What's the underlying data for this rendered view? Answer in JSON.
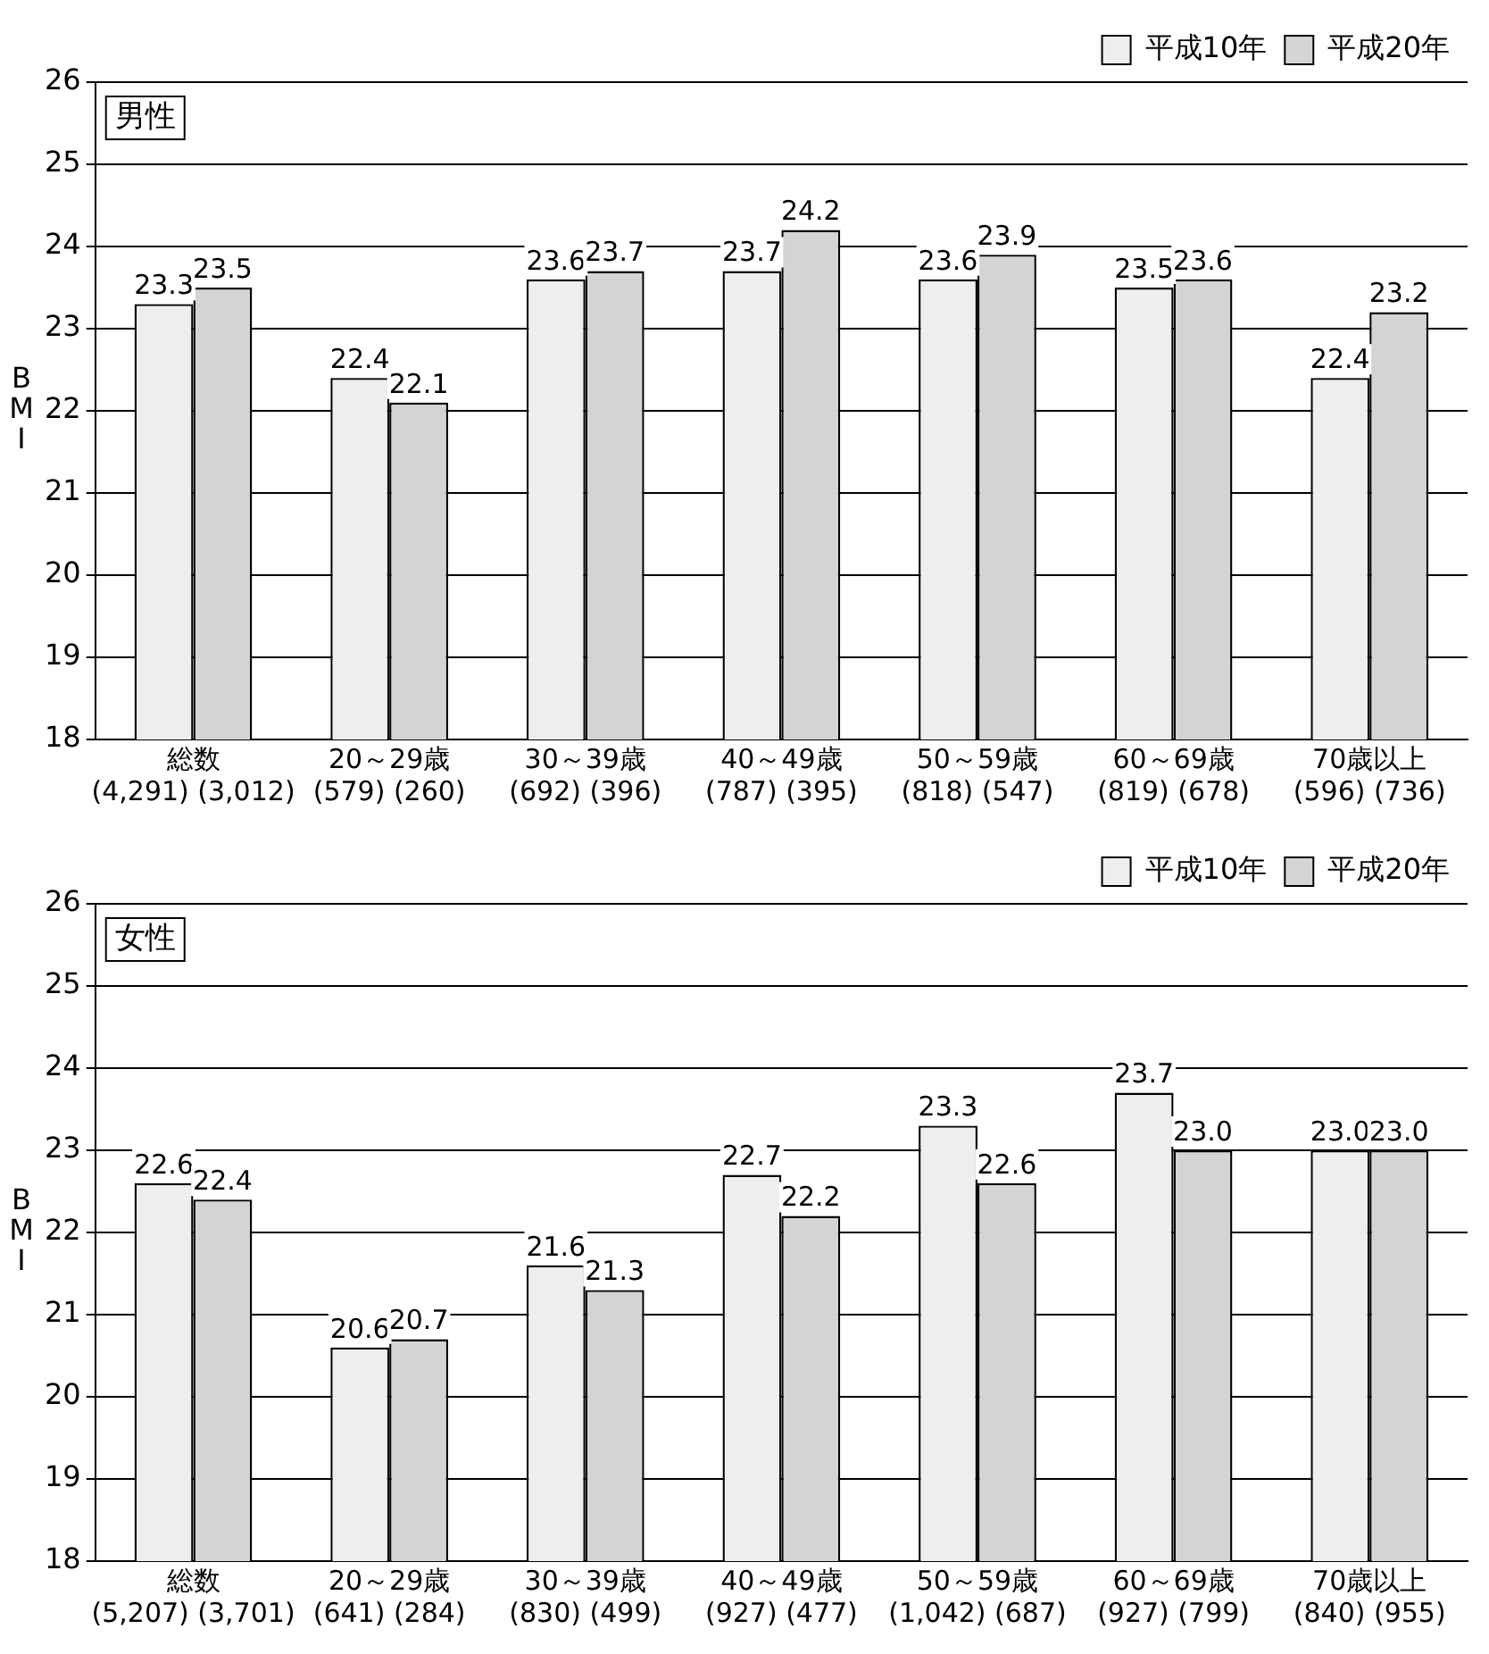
{
  "chart_data": [
    {
      "type": "bar",
      "title": "男性",
      "ylabel": "BMI",
      "categories": [
        "総数\n(4,291) (3,012)",
        "20～29歳\n(579) (260)",
        "30～39歳\n(692) (396)",
        "40～49歳\n(787) (395)",
        "50～59歳\n(818) (547)",
        "60～69歳\n(819) (678)",
        "70歳以上\n(596) (736)"
      ],
      "series": [
        {
          "name": "平成10年",
          "color": "#eeeeee",
          "values": [
            23.3,
            22.4,
            23.6,
            23.7,
            23.6,
            23.5,
            22.4
          ],
          "value_labels": [
            "23.3",
            "22.4",
            "23.6",
            "23.7",
            "23.6",
            "23.5",
            "22.4"
          ]
        },
        {
          "name": "平成20年",
          "color": "#d4d4d4",
          "values": [
            23.5,
            22.1,
            23.7,
            24.2,
            23.9,
            23.6,
            23.2
          ],
          "value_labels": [
            "23.5",
            "22.1",
            "23.7",
            "24.2",
            "23.9",
            "23.6",
            "23.2"
          ]
        }
      ],
      "ylim": [
        18,
        26
      ],
      "yticks": [
        18,
        19,
        20,
        21,
        22,
        23,
        24,
        25,
        26
      ],
      "grid": "y",
      "legend": "top right"
    },
    {
      "type": "bar",
      "title": "女性",
      "ylabel": "BMI",
      "categories": [
        "総数\n(5,207) (3,701)",
        "20～29歳\n(641) (284)",
        "30～39歳\n(830) (499)",
        "40～49歳\n(927) (477)",
        "50～59歳\n(1,042) (687)",
        "60～69歳\n(927) (799)",
        "70歳以上\n(840) (955)"
      ],
      "series": [
        {
          "name": "平成10年",
          "color": "#eeeeee",
          "values": [
            22.6,
            20.6,
            21.6,
            22.7,
            23.3,
            23.7,
            23.0
          ],
          "value_labels": [
            "22.6",
            "20.6",
            "21.6",
            "22.7",
            "23.3",
            "23.7",
            "23.0"
          ]
        },
        {
          "name": "平成20年",
          "color": "#d4d4d4",
          "values": [
            22.4,
            20.7,
            21.3,
            22.2,
            22.6,
            23.0,
            23.0
          ],
          "value_labels": [
            "22.4",
            "20.7",
            "21.3",
            "22.2",
            "22.6",
            "23.0",
            "23.0"
          ]
        }
      ],
      "ylim": [
        18,
        26
      ],
      "yticks": [
        18,
        19,
        20,
        21,
        22,
        23,
        24,
        25,
        26
      ],
      "grid": "y",
      "legend": "top right"
    }
  ]
}
